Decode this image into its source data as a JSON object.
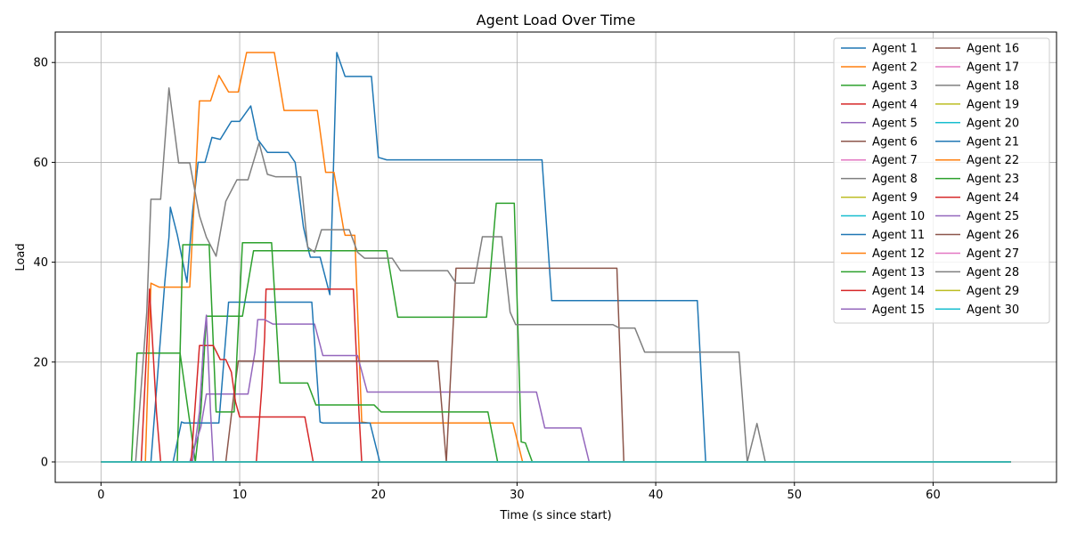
{
  "chart_data": {
    "type": "line",
    "title": "Agent Load Over Time",
    "xlabel": "Time (s since start)",
    "ylabel": "Load",
    "xlim": [
      -3.3,
      68.9
    ],
    "ylim": [
      -4.1,
      86.1
    ],
    "xticks": [
      0,
      10,
      20,
      30,
      40,
      50,
      60
    ],
    "yticks": [
      0,
      20,
      40,
      60,
      80
    ],
    "grid": true,
    "legend": {
      "position": "top-right",
      "columns": 2
    },
    "colors": [
      "#1f77b4",
      "#ff7f0e",
      "#2ca02c",
      "#d62728",
      "#9467bd",
      "#8c564b",
      "#e377c2",
      "#7f7f7f",
      "#bcbd22",
      "#17becf"
    ],
    "series": [
      {
        "name": "Agent 1",
        "points": [
          [
            0,
            0
          ],
          [
            65.6,
            0
          ]
        ]
      },
      {
        "name": "Agent 2",
        "points": [
          [
            0,
            0
          ],
          [
            65.6,
            0
          ]
        ]
      },
      {
        "name": "Agent 3",
        "points": [
          [
            0,
            0
          ],
          [
            65.6,
            0
          ]
        ]
      },
      {
        "name": "Agent 4",
        "points": [
          [
            0,
            0
          ],
          [
            65.6,
            0
          ]
        ]
      },
      {
        "name": "Agent 5",
        "points": [
          [
            0,
            0
          ],
          [
            65.6,
            0
          ]
        ]
      },
      {
        "name": "Agent 6",
        "points": [
          [
            0,
            0
          ],
          [
            65.6,
            0
          ]
        ]
      },
      {
        "name": "Agent 7",
        "points": [
          [
            0,
            0
          ],
          [
            65.6,
            0
          ]
        ]
      },
      {
        "name": "Agent 8",
        "points": [
          [
            0,
            0
          ],
          [
            65.6,
            0
          ]
        ]
      },
      {
        "name": "Agent 9",
        "points": [
          [
            0,
            0
          ],
          [
            65.6,
            0
          ]
        ]
      },
      {
        "name": "Agent 10",
        "points": [
          [
            0,
            0
          ],
          [
            65.6,
            0
          ]
        ]
      },
      {
        "name": "Agent 11",
        "points": [
          [
            0,
            0
          ],
          [
            3.6,
            0
          ],
          [
            4.6,
            36
          ],
          [
            4.9,
            45
          ],
          [
            5.0,
            51
          ],
          [
            5.5,
            45.5
          ],
          [
            6.2,
            36
          ],
          [
            6.6,
            50
          ],
          [
            7.0,
            60
          ],
          [
            7.5,
            60
          ],
          [
            8.0,
            65
          ],
          [
            8.6,
            64.6
          ],
          [
            9.4,
            68.2
          ],
          [
            10.0,
            68.2
          ],
          [
            10.8,
            71.3
          ],
          [
            11.3,
            64.6
          ],
          [
            12.0,
            62
          ],
          [
            13.0,
            62
          ],
          [
            13.5,
            62
          ],
          [
            14.0,
            60
          ],
          [
            14.6,
            47
          ],
          [
            15.0,
            42
          ],
          [
            15.1,
            41
          ],
          [
            15.8,
            41
          ],
          [
            16.5,
            33.5
          ],
          [
            17.0,
            82
          ],
          [
            17.6,
            77.2
          ],
          [
            19.5,
            77.2
          ],
          [
            20.0,
            61
          ],
          [
            20.6,
            60.5
          ],
          [
            31.8,
            60.5
          ],
          [
            32.5,
            32.3
          ],
          [
            43.0,
            32.3
          ],
          [
            43.6,
            0
          ],
          [
            65.6,
            0
          ]
        ]
      },
      {
        "name": "Agent 12",
        "points": [
          [
            0,
            0
          ],
          [
            3.2,
            0
          ],
          [
            3.6,
            35.8
          ],
          [
            4.2,
            35
          ],
          [
            6.4,
            35
          ],
          [
            7.1,
            72.3
          ],
          [
            7.9,
            72.3
          ],
          [
            8.5,
            77.4
          ],
          [
            9.2,
            74.1
          ],
          [
            9.9,
            74.1
          ],
          [
            10.5,
            82
          ],
          [
            12.5,
            82
          ],
          [
            13.2,
            70.4
          ],
          [
            15.6,
            70.4
          ],
          [
            16.2,
            58
          ],
          [
            16.8,
            58
          ],
          [
            17.5,
            46.5
          ],
          [
            17.6,
            45.4
          ],
          [
            18.3,
            45.4
          ],
          [
            18.8,
            8
          ],
          [
            19.3,
            7.8
          ],
          [
            29.7,
            7.8
          ],
          [
            30.4,
            0
          ],
          [
            65.6,
            0
          ]
        ]
      },
      {
        "name": "Agent 13",
        "points": [
          [
            0,
            0
          ],
          [
            2.2,
            0
          ],
          [
            2.6,
            21.8
          ],
          [
            5.7,
            21.8
          ],
          [
            6.4,
            8
          ],
          [
            6.8,
            0
          ],
          [
            7.2,
            10
          ],
          [
            7.6,
            29.2
          ],
          [
            10.2,
            29.2
          ],
          [
            11.0,
            42.3
          ],
          [
            13.0,
            42.3
          ],
          [
            14.5,
            42.3
          ],
          [
            20.6,
            42.3
          ],
          [
            21.4,
            29
          ],
          [
            27.8,
            29
          ],
          [
            28.5,
            51.8
          ],
          [
            29.8,
            51.8
          ],
          [
            30.3,
            4
          ],
          [
            30.6,
            3.8
          ],
          [
            31.1,
            0
          ],
          [
            65.6,
            0
          ]
        ]
      },
      {
        "name": "Agent 14",
        "points": [
          [
            0,
            0
          ],
          [
            11.2,
            0
          ],
          [
            11.6,
            15
          ],
          [
            11.8,
            25
          ],
          [
            11.9,
            34.6
          ],
          [
            14.0,
            34.6
          ],
          [
            18.2,
            34.6
          ],
          [
            18.6,
            10
          ],
          [
            18.8,
            0
          ],
          [
            65.6,
            0
          ]
        ]
      },
      {
        "name": "Agent 15",
        "points": [
          [
            0,
            0
          ],
          [
            6.4,
            0
          ],
          [
            7.2,
            7
          ],
          [
            7.6,
            13.6
          ],
          [
            10.6,
            13.6
          ],
          [
            11.1,
            22
          ],
          [
            11.3,
            28.5
          ],
          [
            11.8,
            28.5
          ],
          [
            12.4,
            27.6
          ],
          [
            15.4,
            27.6
          ],
          [
            16.0,
            21.3
          ],
          [
            18.5,
            21.3
          ],
          [
            19.2,
            14
          ],
          [
            31.4,
            14
          ],
          [
            32.0,
            6.8
          ],
          [
            34.6,
            6.8
          ],
          [
            35.2,
            0
          ],
          [
            65.6,
            0
          ]
        ]
      },
      {
        "name": "Agent 16",
        "points": [
          [
            0,
            0
          ],
          [
            9.0,
            0
          ],
          [
            9.6,
            14
          ],
          [
            9.9,
            20.2
          ],
          [
            24.3,
            20.2
          ],
          [
            24.9,
            0
          ],
          [
            25.6,
            38.8
          ],
          [
            27.0,
            38.8
          ],
          [
            37.2,
            38.8
          ],
          [
            37.7,
            0
          ],
          [
            65.6,
            0
          ]
        ]
      },
      {
        "name": "Agent 17",
        "points": [
          [
            0,
            0
          ],
          [
            65.6,
            0
          ]
        ]
      },
      {
        "name": "Agent 18",
        "points": [
          [
            0,
            0
          ],
          [
            2.5,
            0
          ],
          [
            3.3,
            30
          ],
          [
            3.6,
            52.6
          ],
          [
            4.3,
            52.6
          ],
          [
            4.9,
            74.9
          ],
          [
            5.6,
            59.9
          ],
          [
            6.4,
            59.9
          ],
          [
            7.1,
            49.3
          ],
          [
            7.6,
            45
          ],
          [
            8.3,
            41.2
          ],
          [
            9.0,
            52.2
          ],
          [
            9.8,
            56.5
          ],
          [
            10.6,
            56.5
          ],
          [
            11.4,
            63.9
          ],
          [
            12.0,
            57.6
          ],
          [
            12.6,
            57.1
          ],
          [
            14.4,
            57.1
          ],
          [
            14.9,
            43
          ],
          [
            15.4,
            42
          ],
          [
            15.9,
            46.5
          ],
          [
            17.9,
            46.5
          ],
          [
            18.5,
            42
          ],
          [
            19.0,
            40.8
          ],
          [
            21.0,
            40.8
          ],
          [
            21.6,
            38.3
          ],
          [
            25.0,
            38.3
          ],
          [
            25.6,
            35.8
          ],
          [
            26.9,
            35.8
          ],
          [
            27.5,
            45.1
          ],
          [
            28.9,
            45.1
          ],
          [
            29.5,
            30
          ],
          [
            29.9,
            27.5
          ],
          [
            36.9,
            27.5
          ],
          [
            37.4,
            26.8
          ],
          [
            38.5,
            26.8
          ],
          [
            39.2,
            22
          ],
          [
            46.0,
            22
          ],
          [
            46.6,
            0
          ],
          [
            47.3,
            7.7
          ],
          [
            47.9,
            0
          ],
          [
            65.6,
            0
          ]
        ]
      },
      {
        "name": "Agent 19",
        "points": [
          [
            0,
            0
          ],
          [
            65.6,
            0
          ]
        ]
      },
      {
        "name": "Agent 20",
        "points": [
          [
            0,
            0
          ],
          [
            65.6,
            0
          ]
        ]
      },
      {
        "name": "Agent 21",
        "points": [
          [
            0,
            0
          ],
          [
            5.2,
            0
          ],
          [
            5.8,
            8
          ],
          [
            6.0,
            7.8
          ],
          [
            8.5,
            7.8
          ],
          [
            9.2,
            32
          ],
          [
            10.8,
            32
          ],
          [
            15.2,
            32
          ],
          [
            15.8,
            8
          ],
          [
            16.0,
            7.8
          ],
          [
            19.4,
            7.8
          ],
          [
            20.1,
            0
          ],
          [
            65.6,
            0
          ]
        ]
      },
      {
        "name": "Agent 22",
        "points": [
          [
            0,
            0
          ],
          [
            65.6,
            0
          ]
        ]
      },
      {
        "name": "Agent 23",
        "points": [
          [
            0,
            0
          ],
          [
            5.5,
            0
          ],
          [
            5.9,
            43.5
          ],
          [
            6.2,
            43.5
          ],
          [
            7.8,
            43.5
          ],
          [
            8.3,
            10
          ],
          [
            9.0,
            10
          ],
          [
            9.6,
            10
          ],
          [
            10.2,
            43.9
          ],
          [
            12.3,
            43.9
          ],
          [
            12.9,
            15.8
          ],
          [
            14.9,
            15.8
          ],
          [
            15.5,
            11.4
          ],
          [
            19.7,
            11.4
          ],
          [
            20.2,
            10
          ],
          [
            27.9,
            10
          ],
          [
            28.6,
            0
          ],
          [
            65.6,
            0
          ]
        ]
      },
      {
        "name": "Agent 24",
        "points": [
          [
            0,
            0
          ],
          [
            2.9,
            0
          ],
          [
            3.5,
            34.6
          ],
          [
            4.0,
            10
          ],
          [
            4.3,
            0
          ],
          [
            6.5,
            0
          ],
          [
            7.1,
            23.3
          ],
          [
            8.1,
            23.3
          ],
          [
            8.6,
            20.5
          ],
          [
            9.0,
            20.5
          ],
          [
            9.4,
            18
          ],
          [
            9.7,
            12
          ],
          [
            10.0,
            9
          ],
          [
            13.2,
            9
          ],
          [
            14.7,
            9
          ],
          [
            15.3,
            0
          ],
          [
            65.6,
            0
          ]
        ]
      },
      {
        "name": "Agent 25",
        "points": [
          [
            0,
            0
          ],
          [
            6.6,
            0
          ],
          [
            7.1,
            10
          ],
          [
            7.4,
            24
          ],
          [
            7.6,
            29.4
          ],
          [
            7.9,
            10
          ],
          [
            8.1,
            0
          ],
          [
            65.6,
            0
          ]
        ]
      },
      {
        "name": "Agent 26",
        "points": [
          [
            0,
            0
          ],
          [
            65.6,
            0
          ]
        ]
      },
      {
        "name": "Agent 27",
        "points": [
          [
            0,
            0
          ],
          [
            65.6,
            0
          ]
        ]
      },
      {
        "name": "Agent 28",
        "points": [
          [
            0,
            0
          ],
          [
            65.6,
            0
          ]
        ]
      },
      {
        "name": "Agent 29",
        "points": [
          [
            0,
            0
          ],
          [
            65.6,
            0
          ]
        ]
      },
      {
        "name": "Agent 30",
        "points": [
          [
            0,
            0
          ],
          [
            65.6,
            0
          ]
        ]
      }
    ]
  }
}
